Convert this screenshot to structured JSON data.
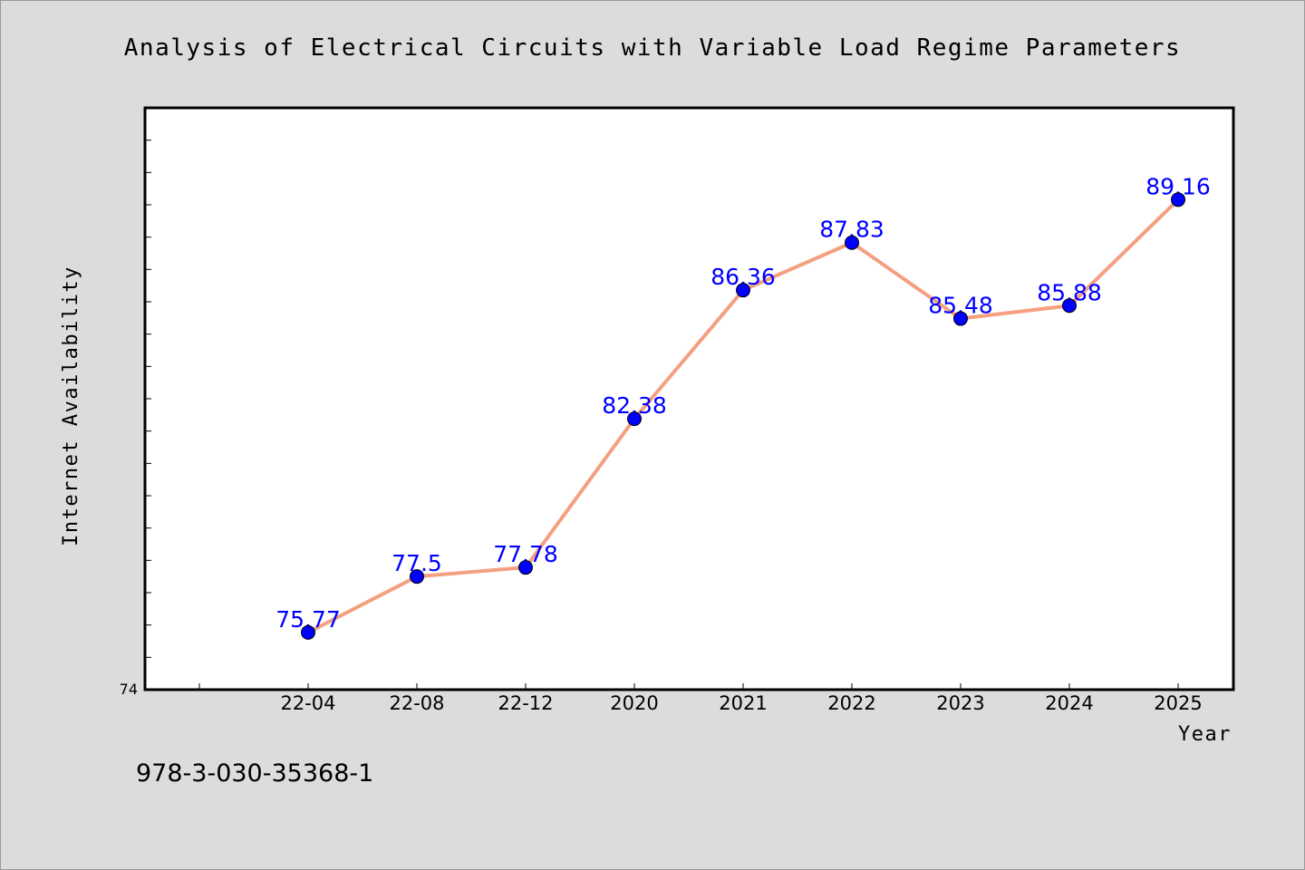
{
  "chart_data": {
    "type": "line",
    "title": "Analysis of Electrical Circuits with Variable Load Regime Parameters",
    "xlabel": "Year",
    "ylabel": "Internet Availability",
    "categories": [
      "22-04",
      "22-08",
      "22-12",
      "2020",
      "2021",
      "2022",
      "2023",
      "2024",
      "2025"
    ],
    "series": [
      {
        "values": [
          75.77,
          77.5,
          77.78,
          82.38,
          86.36,
          87.83,
          85.48,
          85.88,
          89.16
        ],
        "data_labels": [
          "75.77",
          "77.5",
          "77.78",
          "82.38",
          "86.36",
          "87.83",
          "85.48",
          "85.88",
          "89.16"
        ]
      }
    ],
    "ylim": [
      74,
      92
    ],
    "y_tick_labels": [
      "74"
    ],
    "grid": false,
    "legend": "none",
    "line_color": "#f4a080",
    "marker_color": "#0000ff",
    "label_color": "#0000ff",
    "background_color": "#dcdcdc",
    "plot_background": "#ffffff"
  },
  "footer": {
    "identifier": "978-3-030-35368-1"
  }
}
